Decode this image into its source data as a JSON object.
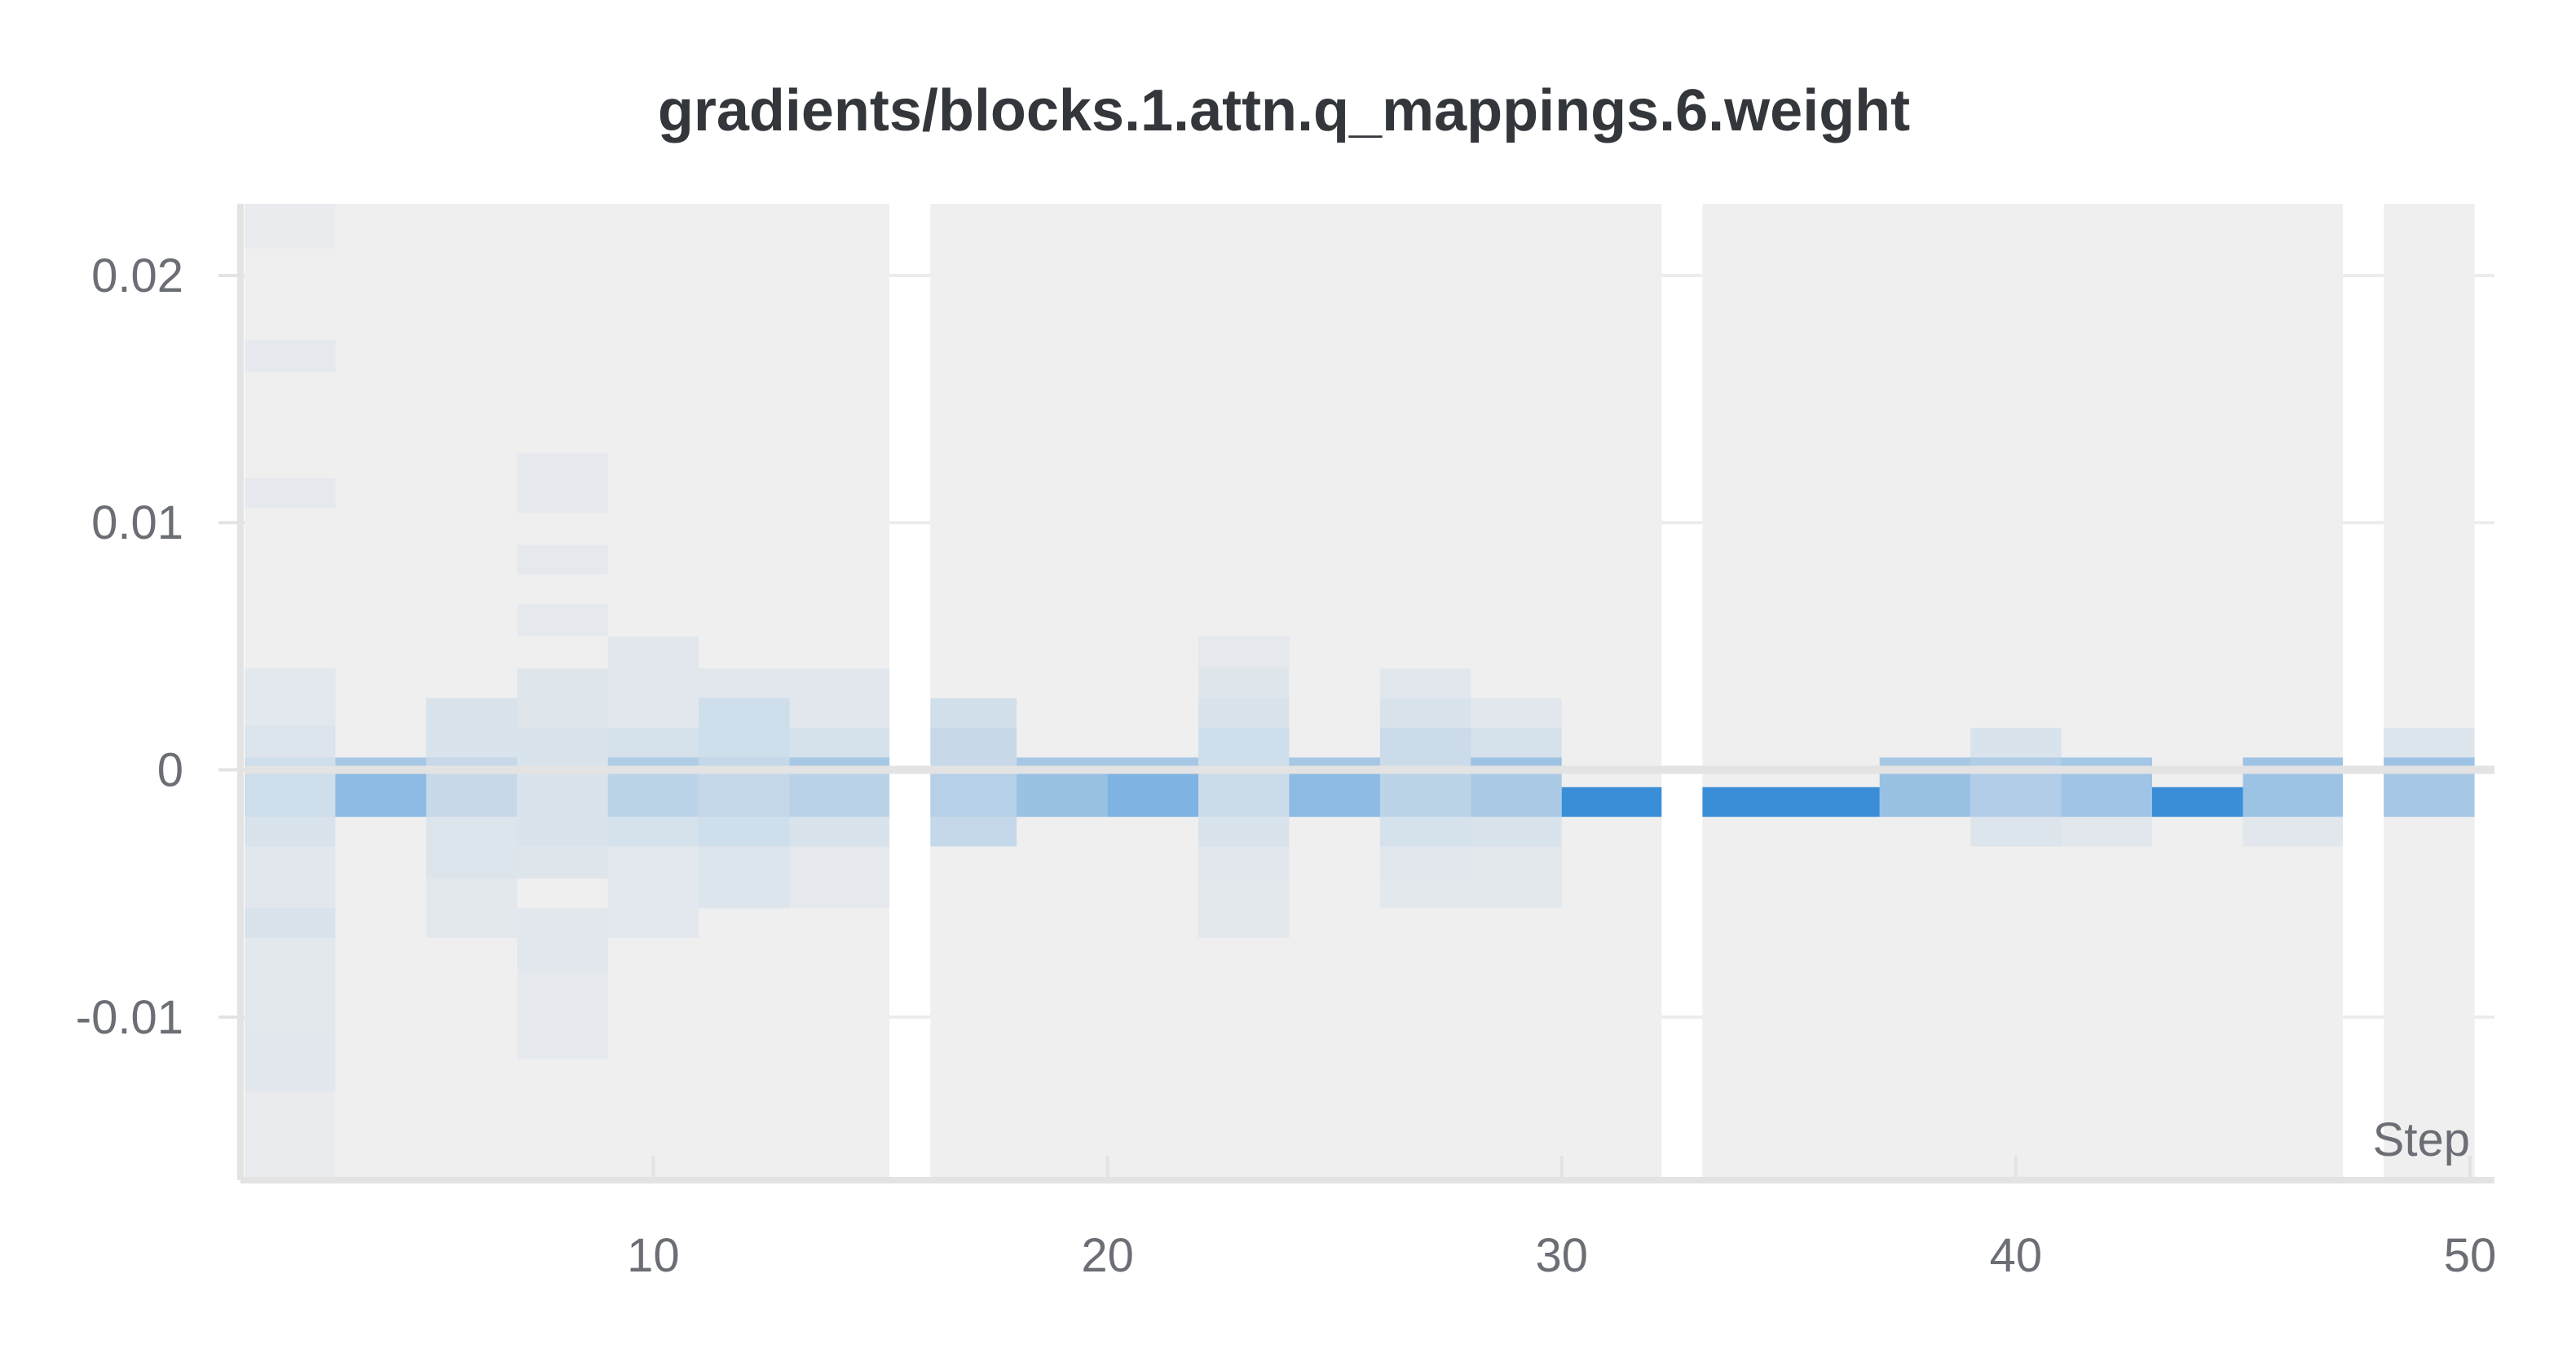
{
  "chart_data": {
    "type": "heatmap",
    "title": "gradients/blocks.1.attn.q_mappings.6.weight",
    "xlabel": "Step",
    "ylabel": "",
    "xlim": [
      1,
      50
    ],
    "ylim": [
      -0.0166,
      0.0229
    ],
    "x_ticks": [
      10,
      20,
      30,
      40,
      50
    ],
    "x_tick_labels": [
      "10",
      "20",
      "30",
      "40",
      "50"
    ],
    "y_ticks": [
      0.02,
      0.01,
      0,
      -0.01
    ],
    "y_tick_labels": [
      "0.02",
      "0.01",
      "0",
      "-0.01"
    ],
    "grid": true,
    "colors": {
      "background_band": "#efefef",
      "cell": "#3a8ed8",
      "axis": "#e3e3e3",
      "grid": "#ececec",
      "zero_line": "#e3e3e3"
    },
    "shaded_step_ranges": [
      [
        1,
        15.2
      ],
      [
        16.1,
        32.2
      ],
      [
        33.1,
        47.2
      ],
      [
        48.1,
        50.1
      ]
    ],
    "columns": [
      {
        "x0": 1,
        "x1": 3,
        "cells": [
          {
            "y0": 0.0211,
            "y1": 0.0229,
            "i": 0.03
          },
          {
            "y0": 0.0161,
            "y1": 0.0174,
            "i": 0.05
          },
          {
            "y0": 0.0106,
            "y1": 0.0118,
            "i": 0.05
          },
          {
            "y0": 0.0041,
            "y1": 0.0018,
            "i": 0.07
          },
          {
            "y0": 0.0018,
            "y1": 0.0005,
            "i": 0.1
          },
          {
            "y0": 0.0005,
            "y1": -0.0019,
            "i": 0.18
          },
          {
            "y0": -0.0019,
            "y1": -0.0031,
            "i": 0.12
          },
          {
            "y0": -0.0031,
            "y1": -0.0056,
            "i": 0.08
          },
          {
            "y0": -0.0056,
            "y1": -0.0068,
            "i": 0.12
          },
          {
            "y0": -0.0068,
            "y1": -0.0105,
            "i": 0.06
          },
          {
            "y0": -0.0105,
            "y1": -0.013,
            "i": 0.08
          },
          {
            "y0": -0.013,
            "y1": -0.0166,
            "i": 0.03
          }
        ]
      },
      {
        "x0": 3,
        "x1": 5,
        "cells": [
          {
            "y0": 0.0005,
            "y1": 0.0001,
            "i": 0.4
          },
          {
            "y0": 0.0001,
            "y1": -0.0019,
            "i": 0.55
          }
        ]
      },
      {
        "x0": 5,
        "x1": 7,
        "cells": [
          {
            "y0": 0.0029,
            "y1": 0.0005,
            "i": 0.12
          },
          {
            "y0": 0.0005,
            "y1": -0.0019,
            "i": 0.22
          },
          {
            "y0": -0.0019,
            "y1": -0.0044,
            "i": 0.1
          },
          {
            "y0": -0.0044,
            "y1": -0.0068,
            "i": 0.06
          }
        ]
      },
      {
        "x0": 7,
        "x1": 9,
        "cells": [
          {
            "y0": 0.0128,
            "y1": 0.0104,
            "i": 0.05
          },
          {
            "y0": 0.0091,
            "y1": 0.0079,
            "i": 0.05
          },
          {
            "y0": 0.0067,
            "y1": 0.0054,
            "i": 0.05
          },
          {
            "y0": 0.0041,
            "y1": 0.0017,
            "i": 0.09
          },
          {
            "y0": 0.0017,
            "y1": -0.0031,
            "i": 0.12
          },
          {
            "y0": -0.0031,
            "y1": -0.0044,
            "i": 0.09
          },
          {
            "y0": -0.0056,
            "y1": -0.0081,
            "i": 0.08
          },
          {
            "y0": -0.0081,
            "y1": -0.0117,
            "i": 0.05
          }
        ]
      },
      {
        "x0": 9,
        "x1": 11,
        "cells": [
          {
            "y0": 0.0054,
            "y1": 0.0017,
            "i": 0.08
          },
          {
            "y0": 0.0017,
            "y1": 0.0005,
            "i": 0.14
          },
          {
            "y0": 0.0005,
            "y1": 0.0001,
            "i": 0.35
          },
          {
            "y0": 0.0001,
            "y1": -0.0019,
            "i": 0.28
          },
          {
            "y0": -0.0019,
            "y1": -0.0031,
            "i": 0.14
          },
          {
            "y0": -0.0031,
            "y1": -0.0068,
            "i": 0.07
          }
        ]
      },
      {
        "x0": 11,
        "x1": 13,
        "cells": [
          {
            "y0": 0.0041,
            "y1": 0.0029,
            "i": 0.08
          },
          {
            "y0": 0.0029,
            "y1": 0.0005,
            "i": 0.18
          },
          {
            "y0": 0.0005,
            "y1": -0.0019,
            "i": 0.24
          },
          {
            "y0": -0.0019,
            "y1": -0.0031,
            "i": 0.18
          },
          {
            "y0": -0.0031,
            "y1": -0.0056,
            "i": 0.1
          }
        ]
      },
      {
        "x0": 13,
        "x1": 15.2,
        "cells": [
          {
            "y0": 0.0041,
            "y1": 0.0017,
            "i": 0.08
          },
          {
            "y0": 0.0017,
            "y1": 0.0005,
            "i": 0.14
          },
          {
            "y0": 0.0005,
            "y1": 0.0001,
            "i": 0.4
          },
          {
            "y0": 0.0001,
            "y1": -0.0019,
            "i": 0.3
          },
          {
            "y0": -0.0019,
            "y1": -0.0031,
            "i": 0.12
          },
          {
            "y0": -0.0031,
            "y1": -0.0056,
            "i": 0.05
          }
        ]
      },
      {
        "x0": 16.1,
        "x1": 18,
        "cells": [
          {
            "y0": 0.0029,
            "y1": 0.0017,
            "i": 0.16
          },
          {
            "y0": 0.0017,
            "y1": 0.0001,
            "i": 0.22
          },
          {
            "y0": 0.0001,
            "y1": -0.0019,
            "i": 0.32
          },
          {
            "y0": -0.0019,
            "y1": -0.0031,
            "i": 0.24
          }
        ]
      },
      {
        "x0": 18,
        "x1": 20,
        "cells": [
          {
            "y0": 0.0005,
            "y1": 0.0001,
            "i": 0.4
          },
          {
            "y0": 0.0001,
            "y1": -0.0019,
            "i": 0.48
          }
        ]
      },
      {
        "x0": 20,
        "x1": 22,
        "cells": [
          {
            "y0": 0.0005,
            "y1": 0.0001,
            "i": 0.4
          },
          {
            "y0": 0.0001,
            "y1": -0.0019,
            "i": 0.62
          }
        ]
      },
      {
        "x0": 22,
        "x1": 24,
        "cells": [
          {
            "y0": 0.0054,
            "y1": 0.0041,
            "i": 0.05
          },
          {
            "y0": 0.0041,
            "y1": 0.0029,
            "i": 0.09
          },
          {
            "y0": 0.0029,
            "y1": 0.0017,
            "i": 0.12
          },
          {
            "y0": 0.0017,
            "y1": 0.0001,
            "i": 0.18
          },
          {
            "y0": 0.0001,
            "y1": -0.0019,
            "i": 0.2
          },
          {
            "y0": -0.0019,
            "y1": -0.0031,
            "i": 0.12
          },
          {
            "y0": -0.0031,
            "y1": -0.0044,
            "i": 0.08
          },
          {
            "y0": -0.0044,
            "y1": -0.0068,
            "i": 0.06
          }
        ]
      },
      {
        "x0": 24,
        "x1": 26,
        "cells": [
          {
            "y0": 0.0005,
            "y1": 0.0001,
            "i": 0.4
          },
          {
            "y0": 0.0001,
            "y1": -0.0019,
            "i": 0.55
          }
        ]
      },
      {
        "x0": 26,
        "x1": 28,
        "cells": [
          {
            "y0": 0.0041,
            "y1": 0.0029,
            "i": 0.08
          },
          {
            "y0": 0.0029,
            "y1": 0.0017,
            "i": 0.12
          },
          {
            "y0": 0.0017,
            "y1": 0.0001,
            "i": 0.2
          },
          {
            "y0": 0.0001,
            "y1": -0.0019,
            "i": 0.28
          },
          {
            "y0": -0.0019,
            "y1": -0.0031,
            "i": 0.14
          },
          {
            "y0": -0.0031,
            "y1": -0.0044,
            "i": 0.08
          },
          {
            "y0": -0.0044,
            "y1": -0.0056,
            "i": 0.06
          }
        ]
      },
      {
        "x0": 28,
        "x1": 30,
        "cells": [
          {
            "y0": 0.0029,
            "y1": 0.0017,
            "i": 0.08
          },
          {
            "y0": 0.0017,
            "y1": 0.0005,
            "i": 0.14
          },
          {
            "y0": 0.0005,
            "y1": 0.0001,
            "i": 0.45
          },
          {
            "y0": 0.0001,
            "y1": -0.0019,
            "i": 0.38
          },
          {
            "y0": -0.0019,
            "y1": -0.0031,
            "i": 0.12
          },
          {
            "y0": -0.0031,
            "y1": -0.0056,
            "i": 0.06
          }
        ]
      },
      {
        "x0": 30,
        "x1": 32.2,
        "cells": [
          {
            "y0": -0.0007,
            "y1": -0.0019,
            "i": 1.0
          }
        ]
      },
      {
        "x0": 33.1,
        "x1": 37,
        "cells": [
          {
            "y0": -0.0007,
            "y1": -0.0019,
            "i": 1.0
          }
        ]
      },
      {
        "x0": 37,
        "x1": 39,
        "cells": [
          {
            "y0": 0.0005,
            "y1": 0.0001,
            "i": 0.4
          },
          {
            "y0": 0.0001,
            "y1": -0.0019,
            "i": 0.48
          }
        ]
      },
      {
        "x0": 39,
        "x1": 41,
        "cells": [
          {
            "y0": 0.0017,
            "y1": 0.0005,
            "i": 0.12
          },
          {
            "y0": 0.0005,
            "y1": -0.0019,
            "i": 0.34
          },
          {
            "y0": -0.0019,
            "y1": -0.0031,
            "i": 0.1
          }
        ]
      },
      {
        "x0": 41,
        "x1": 43,
        "cells": [
          {
            "y0": 0.0005,
            "y1": 0.0001,
            "i": 0.42
          },
          {
            "y0": 0.0001,
            "y1": -0.0019,
            "i": 0.44
          },
          {
            "y0": -0.0019,
            "y1": -0.0031,
            "i": 0.08
          }
        ]
      },
      {
        "x0": 43,
        "x1": 45,
        "cells": [
          {
            "y0": -0.0007,
            "y1": -0.0019,
            "i": 1.0
          }
        ]
      },
      {
        "x0": 45,
        "x1": 47.2,
        "cells": [
          {
            "y0": 0.0005,
            "y1": 0.0001,
            "i": 0.45
          },
          {
            "y0": 0.0001,
            "y1": -0.0019,
            "i": 0.45
          },
          {
            "y0": -0.0019,
            "y1": -0.0031,
            "i": 0.08
          }
        ]
      },
      {
        "x0": 48.1,
        "x1": 50.1,
        "cells": [
          {
            "y0": 0.0017,
            "y1": 0.0005,
            "i": 0.1
          },
          {
            "y0": 0.0005,
            "y1": 0.0001,
            "i": 0.45
          },
          {
            "y0": 0.0001,
            "y1": -0.0019,
            "i": 0.4
          }
        ]
      }
    ]
  }
}
